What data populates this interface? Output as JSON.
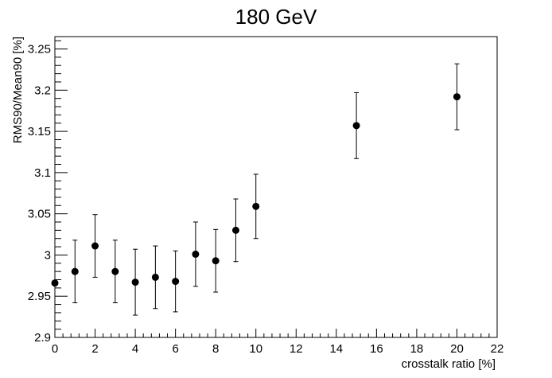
{
  "chart_data": {
    "type": "scatter",
    "title": "180 GeV",
    "xlabel": "crosstalk ratio [%]",
    "ylabel": "RMS90/Mean90 [%]",
    "xlim": [
      0,
      22
    ],
    "ylim": [
      2.9,
      3.265
    ],
    "x_ticks": [
      0,
      2,
      4,
      6,
      8,
      10,
      12,
      14,
      16,
      18,
      20,
      22
    ],
    "y_ticks": [
      2.9,
      2.95,
      3,
      3.05,
      3.1,
      3.15,
      3.2,
      3.25
    ],
    "x_tick_labels": [
      "0",
      "2",
      "4",
      "6",
      "8",
      "10",
      "12",
      "14",
      "16",
      "18",
      "20",
      "22"
    ],
    "y_tick_labels": [
      "2.9",
      "2.95",
      "3",
      "3.05",
      "3.1",
      "3.15",
      "3.2",
      "3.25"
    ],
    "grid": false,
    "series": [
      {
        "x": [
          0,
          1,
          2,
          3,
          4,
          5,
          6,
          7,
          8,
          9,
          10,
          15,
          20
        ],
        "y": [
          2.966,
          2.98,
          3.011,
          2.98,
          2.967,
          2.973,
          2.968,
          3.001,
          2.993,
          3.03,
          3.059,
          3.157,
          3.192
        ],
        "err": [
          0,
          0.038,
          0.038,
          0.038,
          0.04,
          0.038,
          0.037,
          0.039,
          0.038,
          0.038,
          0.039,
          0.04,
          0.04
        ],
        "color": "#000000"
      }
    ]
  }
}
